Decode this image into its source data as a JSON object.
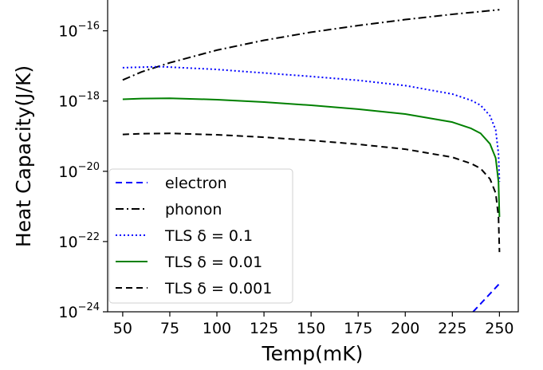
{
  "chart_data": {
    "type": "line",
    "title": "",
    "xlabel": "Temp(mK)",
    "ylabel": "Heat Capacity(J/K)",
    "xlim": [
      42,
      260
    ],
    "ylim_log10": [
      -24,
      -15.1
    ],
    "yscale": "log",
    "grid": false,
    "legend_position": "lower-left",
    "x_ticks": [
      50,
      75,
      100,
      125,
      150,
      175,
      200,
      225,
      250
    ],
    "y_ticks": [
      {
        "exp": -24,
        "base": "10",
        "sup": "−24"
      },
      {
        "exp": -22,
        "base": "10",
        "sup": "−22"
      },
      {
        "exp": -20,
        "base": "10",
        "sup": "−20"
      },
      {
        "exp": -18,
        "base": "10",
        "sup": "−18"
      },
      {
        "exp": -16,
        "base": "10",
        "sup": "−16"
      }
    ],
    "series": [
      {
        "name": "electron",
        "color": "#0000ff",
        "dash": "dashed",
        "points": [
          [
            236,
            -24.0
          ],
          [
            243,
            -23.6
          ],
          [
            250,
            -23.2
          ]
        ]
      },
      {
        "name": "phonon",
        "color": "#000000",
        "dash": "dashdot",
        "points": [
          [
            50,
            -17.4
          ],
          [
            60,
            -17.17
          ],
          [
            75,
            -16.91
          ],
          [
            100,
            -16.55
          ],
          [
            125,
            -16.27
          ],
          [
            150,
            -16.04
          ],
          [
            175,
            -15.85
          ],
          [
            200,
            -15.68
          ],
          [
            225,
            -15.53
          ],
          [
            250,
            -15.4
          ]
        ]
      },
      {
        "name": "TLS δ = 0.1",
        "color": "#0000ff",
        "dash": "dotted",
        "points": [
          [
            50,
            -17.05
          ],
          [
            70,
            -17.02
          ],
          [
            100,
            -17.1
          ],
          [
            125,
            -17.2
          ],
          [
            150,
            -17.3
          ],
          [
            175,
            -17.41
          ],
          [
            200,
            -17.56
          ],
          [
            225,
            -17.8
          ],
          [
            235,
            -17.98
          ],
          [
            240,
            -18.12
          ],
          [
            245,
            -18.42
          ],
          [
            248,
            -18.82
          ],
          [
            249.5,
            -19.5
          ],
          [
            250,
            -20.3
          ]
        ]
      },
      {
        "name": "TLS δ = 0.01",
        "color": "#008000",
        "dash": "solid",
        "points": [
          [
            50,
            -17.95
          ],
          [
            60,
            -17.93
          ],
          [
            75,
            -17.92
          ],
          [
            100,
            -17.96
          ],
          [
            125,
            -18.03
          ],
          [
            150,
            -18.12
          ],
          [
            175,
            -18.23
          ],
          [
            200,
            -18.37
          ],
          [
            225,
            -18.6
          ],
          [
            235,
            -18.78
          ],
          [
            240,
            -18.92
          ],
          [
            245,
            -19.22
          ],
          [
            248,
            -19.62
          ],
          [
            249.5,
            -20.3
          ],
          [
            250,
            -21.3
          ]
        ]
      },
      {
        "name": "TLS δ = 0.001",
        "color": "#000000",
        "dash": "dashed",
        "points": [
          [
            50,
            -18.95
          ],
          [
            60,
            -18.93
          ],
          [
            75,
            -18.92
          ],
          [
            100,
            -18.96
          ],
          [
            125,
            -19.03
          ],
          [
            150,
            -19.12
          ],
          [
            175,
            -19.23
          ],
          [
            200,
            -19.37
          ],
          [
            225,
            -19.6
          ],
          [
            235,
            -19.78
          ],
          [
            240,
            -19.92
          ],
          [
            245,
            -20.22
          ],
          [
            248,
            -20.62
          ],
          [
            249.5,
            -21.3
          ],
          [
            250,
            -22.3
          ]
        ]
      }
    ]
  }
}
